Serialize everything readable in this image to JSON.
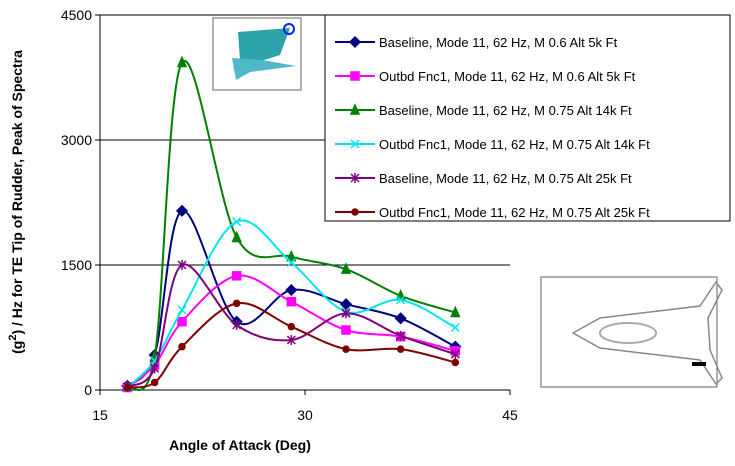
{
  "chart_data": {
    "type": "line",
    "xlabel": "Angle of Attack (Deg)",
    "ylabel": {
      "pre": "(g",
      "sup": "2",
      "post": ") / Hz for TE Tip of Rudder, Peak of Spectra"
    },
    "xlim": [
      15,
      45
    ],
    "xticks": [
      15,
      30,
      45
    ],
    "ylim": [
      0,
      4500
    ],
    "yticks": [
      0,
      1500,
      3000,
      4500
    ],
    "grid": true,
    "smooth": true,
    "legend": "upper right",
    "series": [
      {
        "name": "Baseline, Mode 11, 62 Hz, M 0.6 Alt 5k Ft",
        "color": "#000080",
        "marker": "diamond",
        "x": [
          17,
          19,
          21,
          25,
          29,
          33,
          37,
          41
        ],
        "values": [
          50,
          420,
          2150,
          820,
          1200,
          1030,
          860,
          520
        ]
      },
      {
        "name": "Outbd Fnc1, Mode 11, 62 Hz, M 0.6 Alt 5k Ft",
        "color": "#ff00ff",
        "marker": "square",
        "x": [
          17,
          19,
          21,
          25,
          29,
          33,
          37,
          41
        ],
        "values": [
          30,
          300,
          820,
          1370,
          1060,
          720,
          640,
          470
        ]
      },
      {
        "name": "Baseline, Mode 11, 62 Hz, M 0.75 Alt 14k Ft",
        "color": "#008000",
        "marker": "triangle",
        "x": [
          17,
          19,
          21,
          25,
          29,
          33,
          37,
          41
        ],
        "values": [
          40,
          400,
          3930,
          1830,
          1600,
          1450,
          1130,
          930
        ]
      },
      {
        "name": "Outbd Fnc1, Mode 11, 62 Hz, M 0.75 Alt 14k Ft",
        "color": "#00e5ee",
        "marker": "x",
        "x": [
          17,
          19,
          21,
          25,
          29,
          33,
          37,
          41
        ],
        "values": [
          30,
          350,
          960,
          2020,
          1530,
          940,
          1080,
          750
        ]
      },
      {
        "name": "Baseline, Mode 11, 62 Hz, M 0.75 Alt 25k Ft",
        "color": "#800080",
        "marker": "asterisk",
        "x": [
          17,
          19,
          21,
          25,
          29,
          33,
          37,
          41
        ],
        "values": [
          40,
          260,
          1500,
          780,
          600,
          920,
          650,
          430
        ]
      },
      {
        "name": "Outbd Fnc1, Mode 11, 62 Hz, M 0.75 Alt 25k Ft",
        "color": "#800000",
        "marker": "circle",
        "x": [
          17,
          19,
          21,
          25,
          29,
          33,
          37,
          41
        ],
        "values": [
          30,
          90,
          520,
          1040,
          760,
          490,
          490,
          330
        ]
      }
    ]
  }
}
